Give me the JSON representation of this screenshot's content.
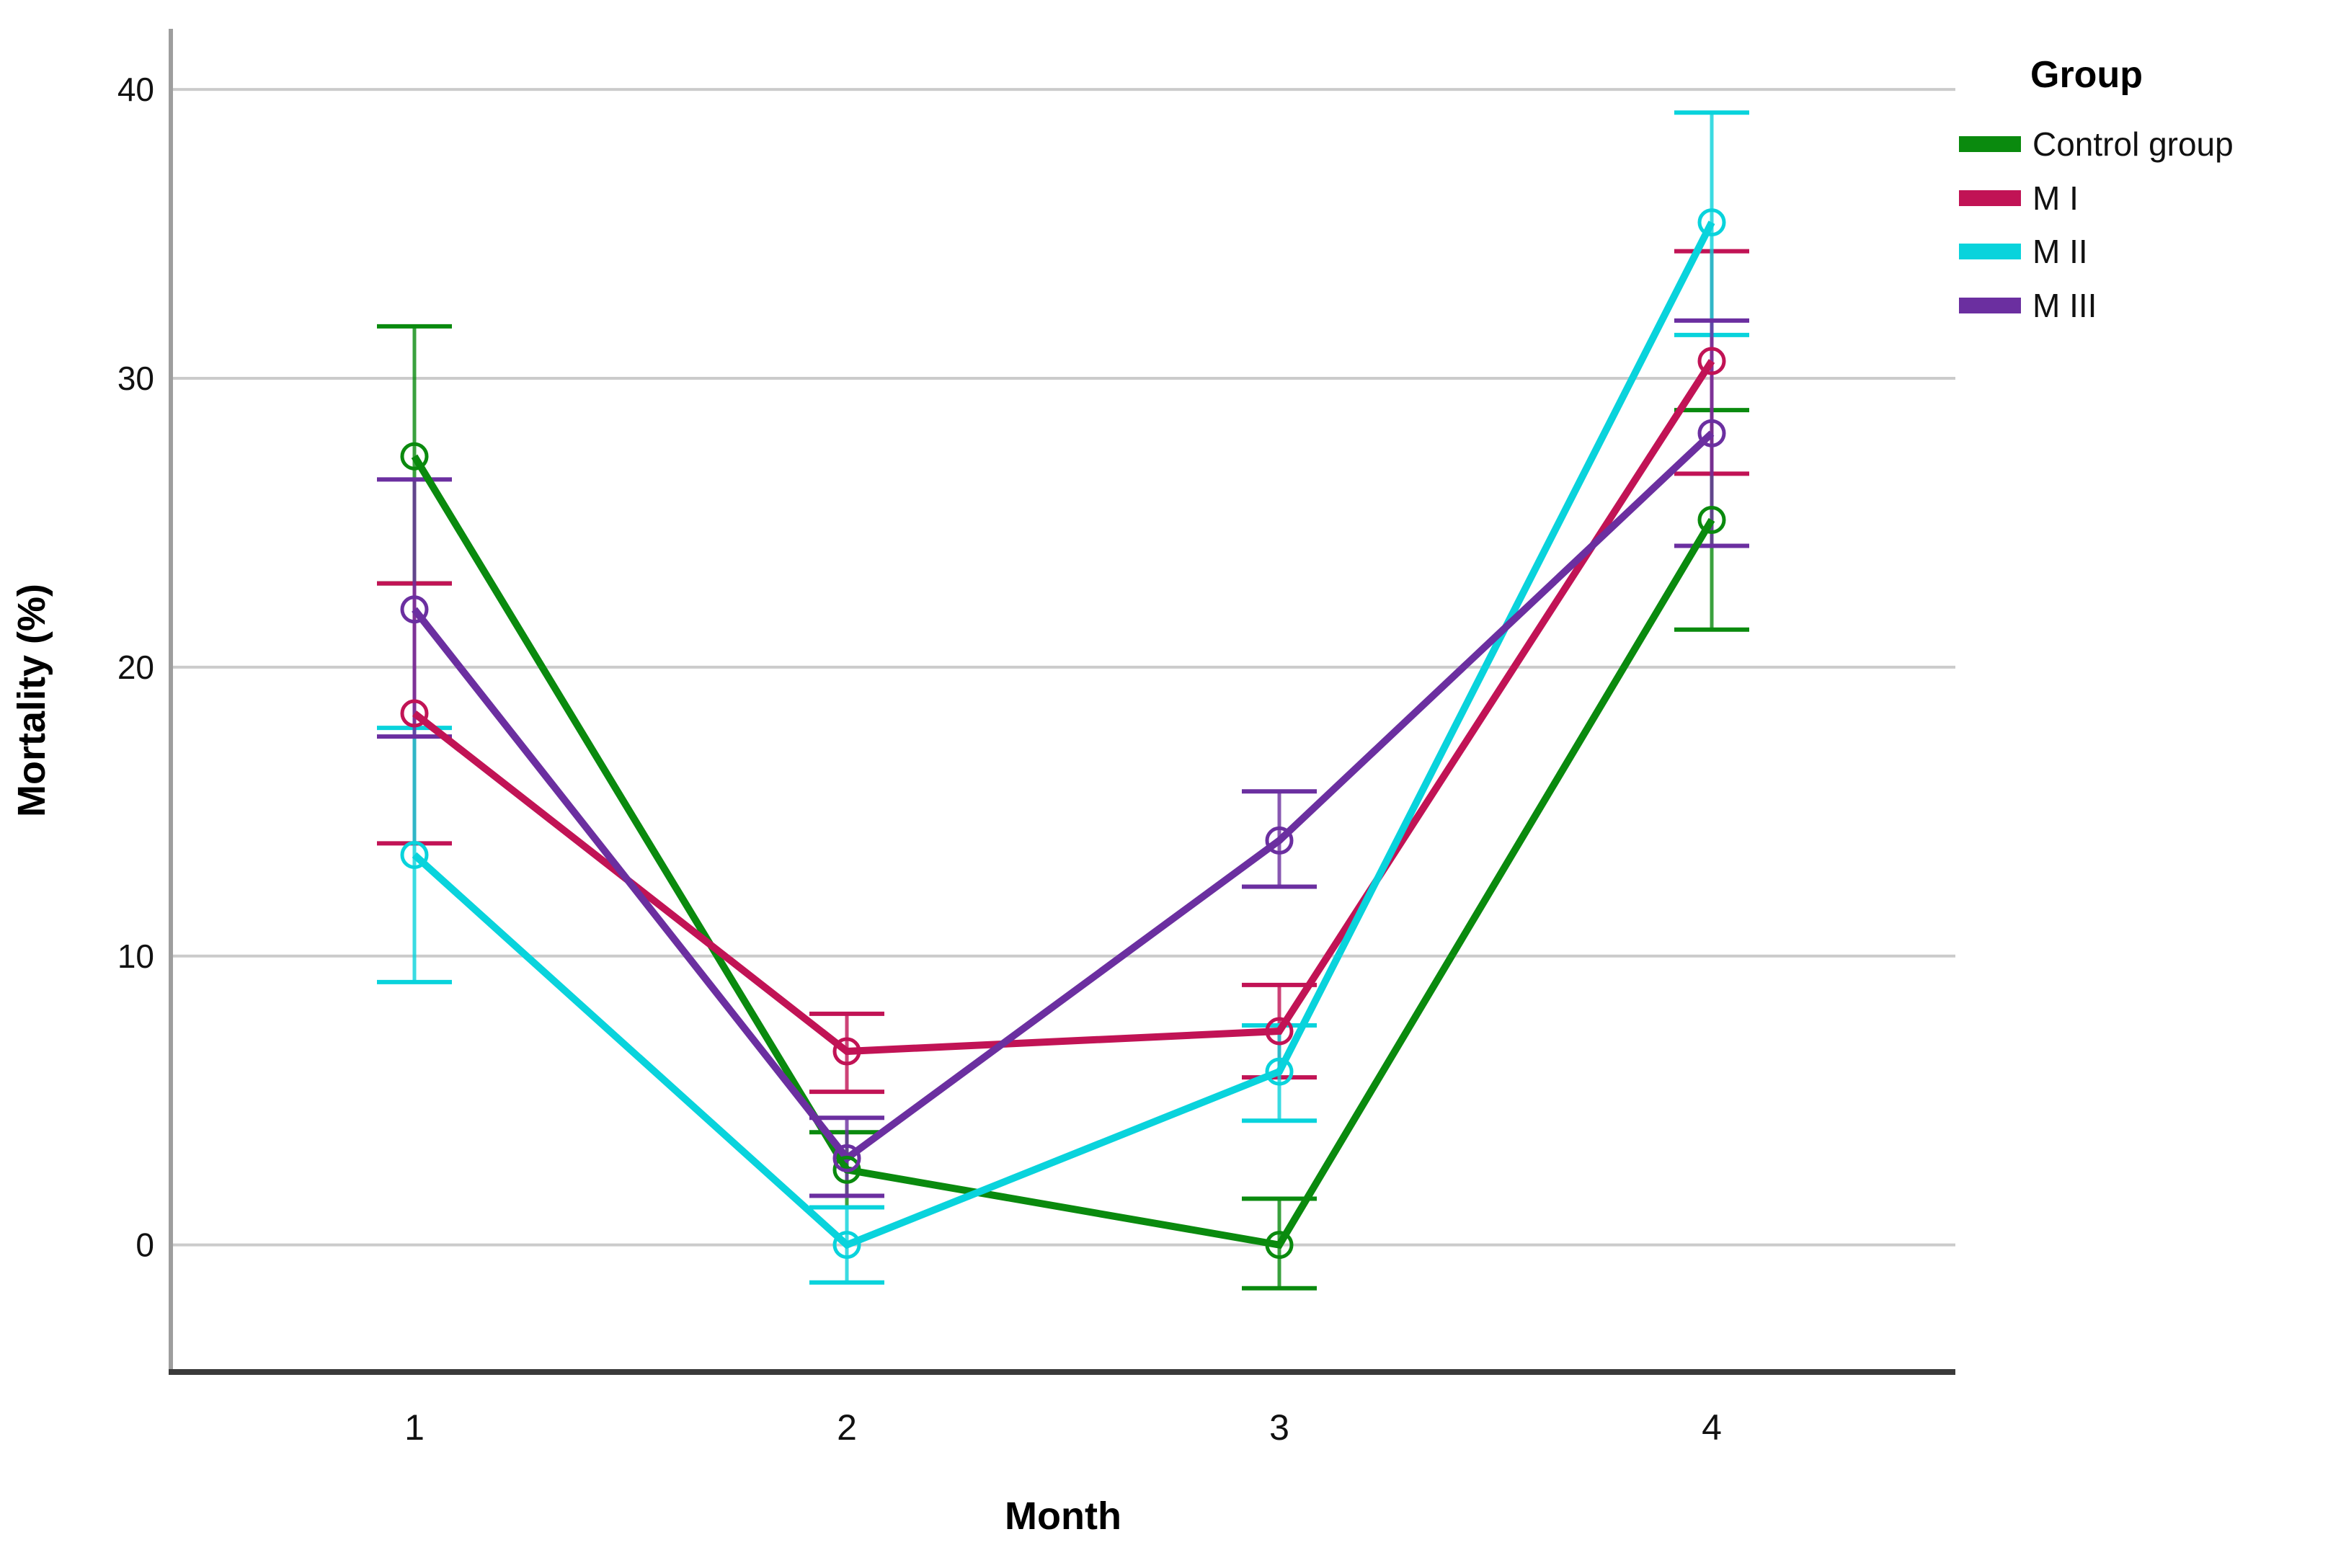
{
  "chart_data": {
    "type": "line",
    "xlabel": "Month",
    "ylabel": "Mortality (%)",
    "x_ticks": [
      "1",
      "2",
      "3",
      "4"
    ],
    "y_ticks": [
      0,
      10,
      20,
      30,
      40
    ],
    "ylim": [
      -4.4,
      42.1
    ],
    "grid": "horizontal",
    "legend_title": "Group",
    "legend_position": "outside-top-right",
    "marker": "open-circle",
    "error_bars": "vertical-with-caps",
    "axis_colors": {
      "y_axis_line": "#9E9E9E",
      "x_axis_line": "#3A3A3A",
      "gridline": "#CBCBCB"
    },
    "series": [
      {
        "name": "Control group",
        "color": "#0A8A0E",
        "values": [
          27.3,
          2.6,
          0.0,
          25.1
        ],
        "ci_low": [
          22.9,
          1.3,
          -1.5,
          21.3
        ],
        "ci_high": [
          31.8,
          3.9,
          1.6,
          28.9
        ]
      },
      {
        "name": "M I",
        "color": "#C11355",
        "values": [
          18.4,
          6.7,
          7.4,
          30.6
        ],
        "ci_low": [
          13.9,
          5.3,
          5.8,
          26.7
        ],
        "ci_high": [
          22.9,
          8.0,
          9.0,
          34.4
        ]
      },
      {
        "name": "M II",
        "color": "#09D3DC",
        "values": [
          13.5,
          0.0,
          6.0,
          35.4
        ],
        "ci_low": [
          9.1,
          -1.3,
          4.3,
          31.5
        ],
        "ci_high": [
          17.9,
          1.3,
          7.6,
          39.2
        ]
      },
      {
        "name": "M III",
        "color": "#6B2FA0",
        "values": [
          22.0,
          3.0,
          14.0,
          28.1
        ],
        "ci_low": [
          17.6,
          1.7,
          12.4,
          24.2
        ],
        "ci_high": [
          26.5,
          4.4,
          15.7,
          32.0
        ]
      }
    ]
  }
}
